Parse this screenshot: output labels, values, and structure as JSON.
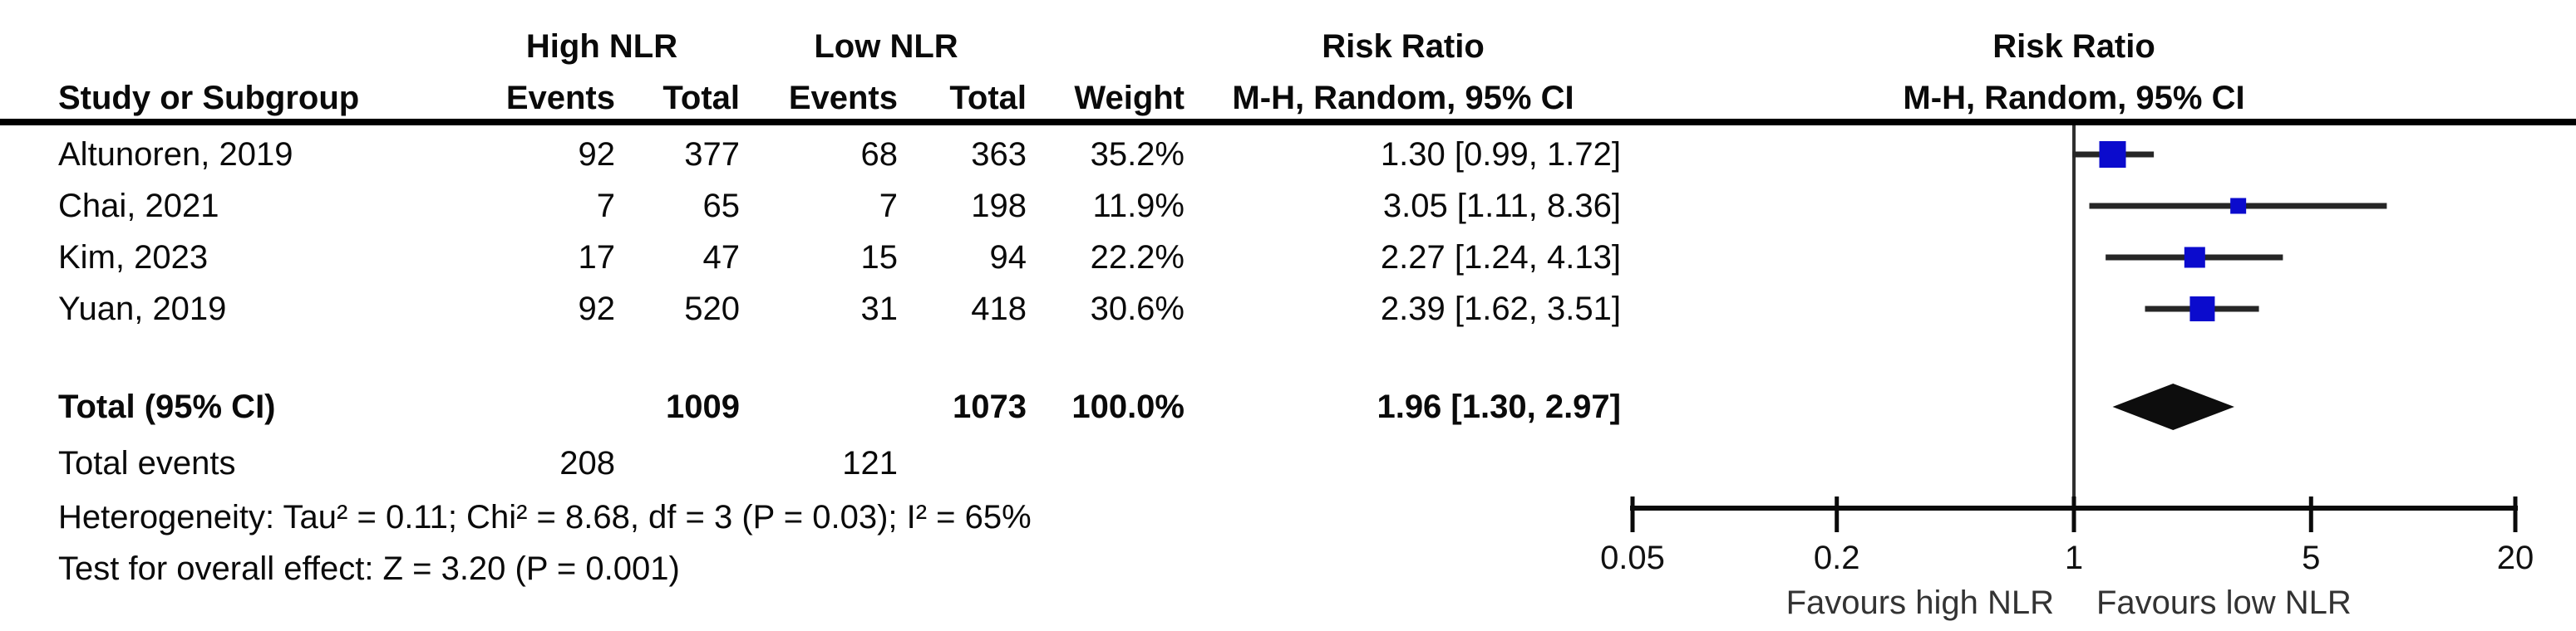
{
  "header": {
    "group1": "High NLR",
    "group2": "Low NLR",
    "effect_title_table": "Risk Ratio",
    "effect_title_plot": "Risk Ratio",
    "method_table": "M-H, Random, 95% CI",
    "method_plot": "M-H, Random, 95% CI",
    "study_col": "Study or Subgroup",
    "events_col1": "Events",
    "total_col1": "Total",
    "events_col2": "Events",
    "total_col2": "Total",
    "weight_col": "Weight"
  },
  "rows": [
    {
      "study": "Altunoren, 2019",
      "events1": "92",
      "total1": "377",
      "events2": "68",
      "total2": "363",
      "weight": "35.2%",
      "rr": "1.30 [0.99, 1.72]"
    },
    {
      "study": "Chai, 2021",
      "events1": "7",
      "total1": "65",
      "events2": "7",
      "total2": "198",
      "weight": "11.9%",
      "rr": "3.05 [1.11, 8.36]"
    },
    {
      "study": "Kim, 2023",
      "events1": "17",
      "total1": "47",
      "events2": "15",
      "total2": "94",
      "weight": "22.2%",
      "rr": "2.27 [1.24, 4.13]"
    },
    {
      "study": "Yuan, 2019",
      "events1": "92",
      "total1": "520",
      "events2": "31",
      "total2": "418",
      "weight": "30.6%",
      "rr": "2.39 [1.62, 3.51]"
    }
  ],
  "total_row": {
    "label": "Total (95% CI)",
    "total1": "1009",
    "total2": "1073",
    "weight": "100.0%",
    "rr": "1.96 [1.30, 2.97]"
  },
  "total_events": {
    "label": "Total events",
    "events1": "208",
    "events2": "121"
  },
  "footnotes": {
    "heterogeneity": "Heterogeneity: Tau² = 0.11; Chi² = 8.68, df = 3 (P = 0.03); I² = 65%",
    "overall_effect": "Test for overall effect: Z = 3.20 (P = 0.001)"
  },
  "chart_data": {
    "type": "forest",
    "effect_measure": "Risk Ratio",
    "method": "M-H, Random, 95% CI",
    "scale": "log",
    "axis": {
      "min": 0.05,
      "max": 20,
      "ticks": [
        0.05,
        0.2,
        1,
        5,
        20
      ],
      "tick_labels": [
        "0.05",
        "0.2",
        "1",
        "5",
        "20"
      ],
      "null_line": 1
    },
    "studies": [
      {
        "label": "Altunoren, 2019",
        "rr": 1.3,
        "ci_low": 0.99,
        "ci_high": 1.72,
        "weight_pct": 35.2
      },
      {
        "label": "Chai, 2021",
        "rr": 3.05,
        "ci_low": 1.11,
        "ci_high": 8.36,
        "weight_pct": 11.9
      },
      {
        "label": "Kim, 2023",
        "rr": 2.27,
        "ci_low": 1.24,
        "ci_high": 4.13,
        "weight_pct": 22.2
      },
      {
        "label": "Yuan, 2019",
        "rr": 2.39,
        "ci_low": 1.62,
        "ci_high": 3.51,
        "weight_pct": 30.6
      }
    ],
    "total": {
      "label": "Total (95% CI)",
      "rr": 1.96,
      "ci_low": 1.3,
      "ci_high": 2.97,
      "weight_pct": 100.0
    },
    "favours_left": "Favours high NLR",
    "favours_right": "Favours low NLR",
    "colors": {
      "marker": "#0b0bcd",
      "ci_line": "#262626",
      "diamond": "#0d0d0d",
      "axis": "#0a0a0a",
      "null_line": "#2f2f2f"
    }
  }
}
